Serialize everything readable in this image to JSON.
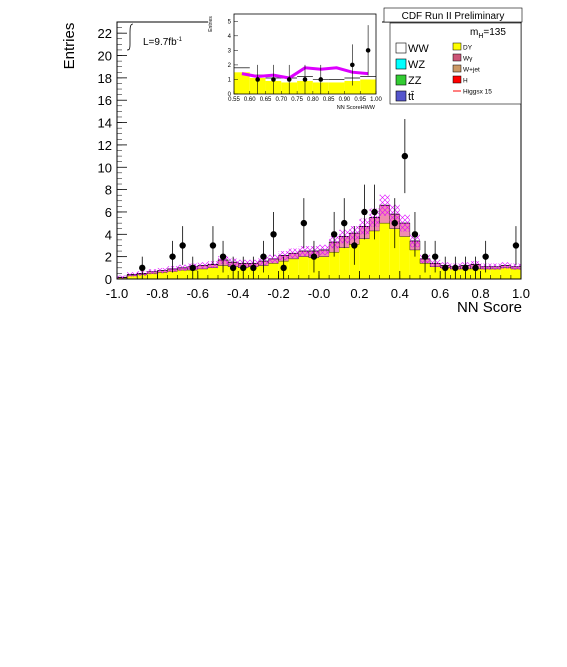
{
  "header": {
    "banner": "CDF Run II Preliminary",
    "luminosity": "L=9.7fb",
    "luminosity_exp": "-1",
    "mass_main": "m",
    "mass_sub": "H",
    "mass_value": "=135"
  },
  "legend": {
    "left": [
      {
        "label": "WW",
        "color": "#ffffff"
      },
      {
        "label": "WZ",
        "color": "#00ffff"
      },
      {
        "label": "ZZ",
        "color": "#33cc33"
      },
      {
        "label": "tt̄",
        "color": "#5555cc"
      }
    ],
    "right": [
      {
        "label": "DY",
        "color": "#ffff00"
      },
      {
        "label": "Wγ",
        "color": "#cc5577"
      },
      {
        "label": "W+jet",
        "color": "#cc9966"
      },
      {
        "label": "H",
        "color": "#ff0000"
      },
      {
        "label": "Higgsx 15",
        "color": "#ff0000"
      }
    ]
  },
  "colors": {
    "dy": "#ffff00",
    "wgamma": "#f08cb0",
    "uncertainty": "#dd00ff",
    "data": "#000000",
    "frame": "#000000"
  },
  "chart_data": [
    {
      "type": "bar",
      "xlabel": "NN Score",
      "ylabel": "Entries",
      "xlim": [
        -1.0,
        1.0
      ],
      "ylim": [
        0,
        23
      ],
      "xticks": [
        "-1.0",
        "-0.8",
        "-0.6",
        "-0.4",
        "-0.2",
        "-0.0",
        "0.2",
        "0.4",
        "0.6",
        "0.8",
        "1.0"
      ],
      "yticks": [
        "0",
        "2",
        "4",
        "6",
        "8",
        "10",
        "12",
        "14",
        "16",
        "18",
        "20",
        "22"
      ],
      "bin_edges": [
        -1.0,
        -0.95,
        -0.9,
        -0.85,
        -0.8,
        -0.75,
        -0.7,
        -0.65,
        -0.6,
        -0.55,
        -0.5,
        -0.45,
        -0.4,
        -0.35,
        -0.3,
        -0.25,
        -0.2,
        -0.15,
        -0.1,
        -0.05,
        0.0,
        0.05,
        0.1,
        0.15,
        0.2,
        0.25,
        0.3,
        0.35,
        0.4,
        0.45,
        0.5,
        0.55,
        0.6,
        0.65,
        0.7,
        0.75,
        0.8,
        0.85,
        0.9,
        0.95,
        1.0
      ],
      "series": [
        {
          "name": "DY",
          "values": [
            0.1,
            0.3,
            0.4,
            0.5,
            0.6,
            0.7,
            0.8,
            0.8,
            0.9,
            1.0,
            1.2,
            1.1,
            1.0,
            1.1,
            1.2,
            1.4,
            1.6,
            1.8,
            2.0,
            1.9,
            2.0,
            2.4,
            2.8,
            3.1,
            3.6,
            4.3,
            5.0,
            4.5,
            3.8,
            2.6,
            1.4,
            1.1,
            1.0,
            0.9,
            0.9,
            0.9,
            0.9,
            0.9,
            1.0,
            0.9
          ]
        },
        {
          "name": "Wγ",
          "values": [
            0.05,
            0.1,
            0.1,
            0.15,
            0.15,
            0.2,
            0.2,
            0.3,
            0.3,
            0.3,
            0.5,
            0.4,
            0.4,
            0.3,
            0.4,
            0.4,
            0.5,
            0.5,
            0.5,
            0.6,
            0.6,
            0.9,
            1.0,
            1.0,
            1.1,
            1.2,
            1.6,
            1.3,
            1.2,
            0.8,
            0.4,
            0.3,
            0.2,
            0.2,
            0.3,
            0.4,
            0.2,
            0.2,
            0.2,
            0.2
          ]
        },
        {
          "name": "Data",
          "style": "points",
          "x": [
            -0.875,
            -0.725,
            -0.675,
            -0.625,
            -0.525,
            -0.475,
            -0.425,
            -0.375,
            -0.325,
            -0.275,
            -0.225,
            -0.175,
            -0.075,
            -0.025,
            0.075,
            0.125,
            0.175,
            0.225,
            0.275,
            0.375,
            0.425,
            0.475,
            0.525,
            0.575,
            0.625,
            0.675,
            0.725,
            0.775,
            0.825,
            0.975
          ],
          "values": [
            1,
            2,
            3,
            1,
            3,
            2,
            1,
            1,
            1,
            2,
            4,
            1,
            5,
            2,
            4,
            5,
            3,
            6,
            6,
            5,
            11,
            4,
            2,
            2,
            1,
            1,
            1,
            1,
            2,
            3
          ]
        }
      ],
      "uncertainty_band": true
    },
    {
      "type": "bar",
      "xlabel": "NN ScoreHWW",
      "ylabel": "Entries",
      "xlim": [
        0.55,
        1.0
      ],
      "ylim": [
        0,
        5.5
      ],
      "xticks": [
        "0.55",
        "0.60",
        "0.65",
        "0.70",
        "0.75",
        "0.80",
        "0.85",
        "0.90",
        "0.95",
        "1.00"
      ],
      "yticks": [
        "0",
        "1",
        "2",
        "3",
        "4",
        "5"
      ],
      "bin_edges": [
        0.55,
        0.6,
        0.65,
        0.7,
        0.75,
        0.8,
        0.85,
        0.9,
        0.95,
        1.0
      ],
      "series": [
        {
          "name": "DY",
          "values": [
            1.5,
            1.1,
            0.9,
            0.8,
            0.9,
            0.8,
            0.8,
            0.9,
            1.0
          ]
        },
        {
          "name": "WW",
          "values": [
            0.3,
            0.2,
            0.2,
            0.3,
            0.3,
            0.2,
            0.2,
            0.2,
            0.2
          ]
        },
        {
          "name": "Higgsx 15",
          "style": "line",
          "values": [
            1.4,
            1.2,
            1.3,
            1.1,
            1.8,
            1.7,
            1.8,
            1.5,
            1.4
          ]
        },
        {
          "name": "Data",
          "style": "points",
          "x": [
            0.625,
            0.675,
            0.725,
            0.775,
            0.825,
            0.925,
            0.975
          ],
          "values": [
            1,
            1,
            1,
            1,
            1,
            2,
            3
          ]
        }
      ]
    }
  ]
}
